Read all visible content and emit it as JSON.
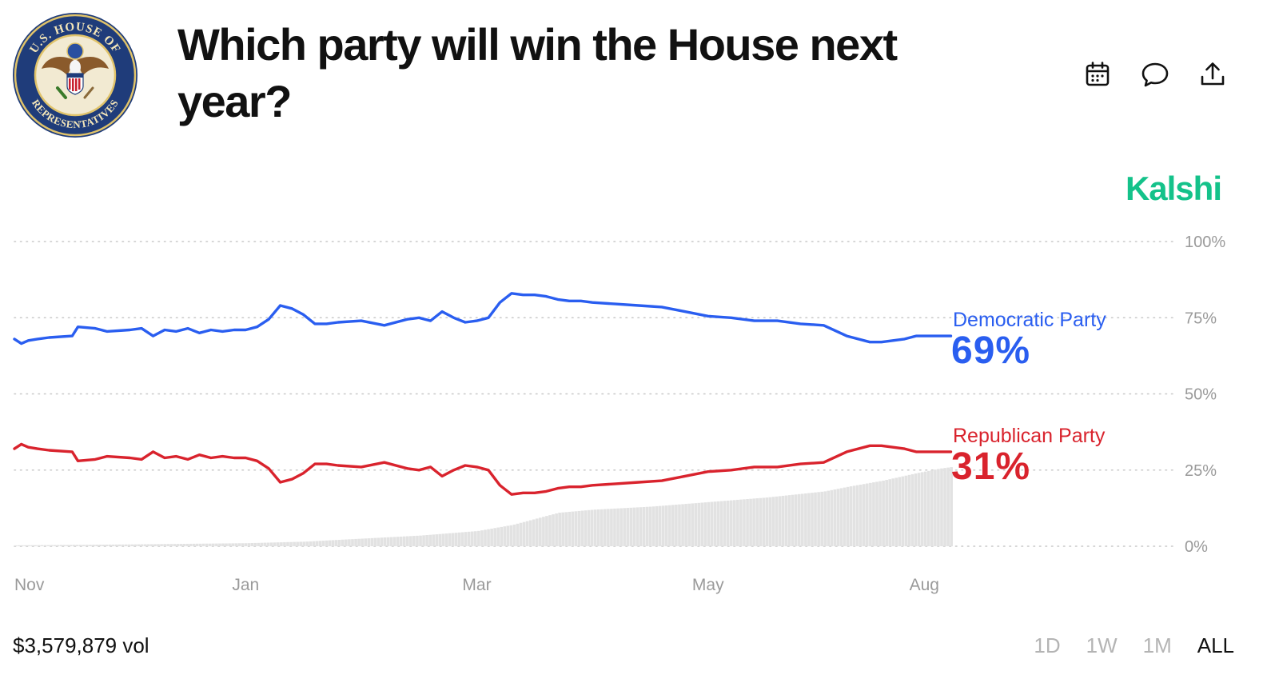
{
  "header": {
    "title": "Which party will win the House next year?",
    "seal": {
      "top_text": "U.S. HOUSE OF",
      "bottom_text": "REPRESENTATIVES"
    },
    "actions": [
      {
        "icon": "calendar-icon"
      },
      {
        "icon": "comment-icon"
      },
      {
        "icon": "share-icon"
      }
    ]
  },
  "brand": {
    "name": "Kalshi",
    "color": "#14c28a"
  },
  "chart_data": {
    "type": "line",
    "title": "Which party will win the House next year?",
    "ylim": [
      0,
      100
    ],
    "y_ticks": [
      {
        "value": 100,
        "label": "100%"
      },
      {
        "value": 75,
        "label": "75%"
      },
      {
        "value": 50,
        "label": "50%"
      },
      {
        "value": 25,
        "label": "25%"
      },
      {
        "value": 0,
        "label": "0%"
      }
    ],
    "x_ticks": [
      {
        "value": 0,
        "label": "Nov"
      },
      {
        "value": 2,
        "label": "Jan"
      },
      {
        "value": 4,
        "label": "Mar"
      },
      {
        "value": 6,
        "label": "May"
      },
      {
        "value": 8,
        "label": "Aug"
      }
    ],
    "xlim": [
      0,
      8
    ],
    "grid": "dotted horizontal",
    "series": [
      {
        "name": "Democratic Party",
        "current_label": "69%",
        "color": "#2a5ef0",
        "x": [
          0,
          0.06,
          0.12,
          0.2,
          0.3,
          0.5,
          0.55,
          0.7,
          0.8,
          1.0,
          1.1,
          1.2,
          1.3,
          1.4,
          1.5,
          1.6,
          1.7,
          1.8,
          1.9,
          2.0,
          2.1,
          2.2,
          2.3,
          2.4,
          2.5,
          2.6,
          2.7,
          2.8,
          3.0,
          3.2,
          3.4,
          3.5,
          3.6,
          3.7,
          3.8,
          3.9,
          4.0,
          4.1,
          4.2,
          4.3,
          4.4,
          4.5,
          4.6,
          4.7,
          4.8,
          4.9,
          5.0,
          5.2,
          5.4,
          5.6,
          5.8,
          6.0,
          6.2,
          6.4,
          6.6,
          6.8,
          7.0,
          7.2,
          7.4,
          7.5,
          7.6,
          7.7,
          7.8,
          7.9,
          8.0,
          8.1
        ],
        "values": [
          68,
          66.5,
          67.5,
          68,
          68.5,
          69,
          72,
          71.5,
          70.5,
          71,
          71.5,
          69,
          71,
          70.5,
          71.5,
          70,
          71,
          70.5,
          71,
          71,
          72,
          74.5,
          79,
          78,
          76,
          73,
          73,
          73.5,
          74,
          72.5,
          74.5,
          75,
          74,
          77,
          75,
          73.5,
          74,
          75,
          80,
          83,
          82.5,
          82.5,
          82,
          81,
          80.5,
          80.5,
          80,
          79.5,
          79,
          78.5,
          77,
          75.5,
          75,
          74,
          74,
          73,
          72.5,
          69,
          67,
          67,
          67.5,
          68,
          69,
          69,
          69,
          69
        ]
      },
      {
        "name": "Republican Party",
        "current_label": "31%",
        "color": "#d9232d",
        "x": [
          0,
          0.06,
          0.12,
          0.2,
          0.3,
          0.5,
          0.55,
          0.7,
          0.8,
          1.0,
          1.1,
          1.2,
          1.3,
          1.4,
          1.5,
          1.6,
          1.7,
          1.8,
          1.9,
          2.0,
          2.1,
          2.2,
          2.3,
          2.4,
          2.5,
          2.6,
          2.7,
          2.8,
          3.0,
          3.2,
          3.4,
          3.5,
          3.6,
          3.7,
          3.8,
          3.9,
          4.0,
          4.1,
          4.2,
          4.3,
          4.4,
          4.5,
          4.6,
          4.7,
          4.8,
          4.9,
          5.0,
          5.2,
          5.4,
          5.6,
          5.8,
          6.0,
          6.2,
          6.4,
          6.6,
          6.8,
          7.0,
          7.2,
          7.4,
          7.5,
          7.6,
          7.7,
          7.8,
          7.9,
          8.0,
          8.1
        ],
        "values": [
          32,
          33.5,
          32.5,
          32,
          31.5,
          31,
          28,
          28.5,
          29.5,
          29,
          28.5,
          31,
          29,
          29.5,
          28.5,
          30,
          29,
          29.5,
          29,
          29,
          28,
          25.5,
          21,
          22,
          24,
          27,
          27,
          26.5,
          26,
          27.5,
          25.5,
          25,
          26,
          23,
          25,
          26.5,
          26,
          25,
          20,
          17,
          17.5,
          17.5,
          18,
          19,
          19.5,
          19.5,
          20,
          20.5,
          21,
          21.5,
          23,
          24.5,
          25,
          26,
          26,
          27,
          27.5,
          31,
          33,
          33,
          32.5,
          32,
          31,
          31,
          31,
          31
        ]
      },
      {
        "name": "Volume",
        "color": "#e2e2e2",
        "x": [
          0,
          1,
          2,
          2.5,
          3,
          3.5,
          4,
          4.3,
          4.5,
          4.7,
          5,
          5.5,
          6,
          6.5,
          7,
          7.2,
          7.5,
          7.8,
          8.0,
          8.1
        ],
        "values": [
          0.3,
          0.6,
          1,
          1.5,
          2.5,
          3.5,
          5,
          7,
          9,
          11,
          12,
          13,
          14.5,
          16,
          18,
          19.5,
          21.5,
          24,
          25.5,
          26
        ]
      }
    ]
  },
  "footer": {
    "volume": "$3,579,879 vol",
    "ranges": [
      {
        "label": "1D",
        "active": false
      },
      {
        "label": "1W",
        "active": false
      },
      {
        "label": "1M",
        "active": false
      },
      {
        "label": "ALL",
        "active": true
      }
    ]
  }
}
